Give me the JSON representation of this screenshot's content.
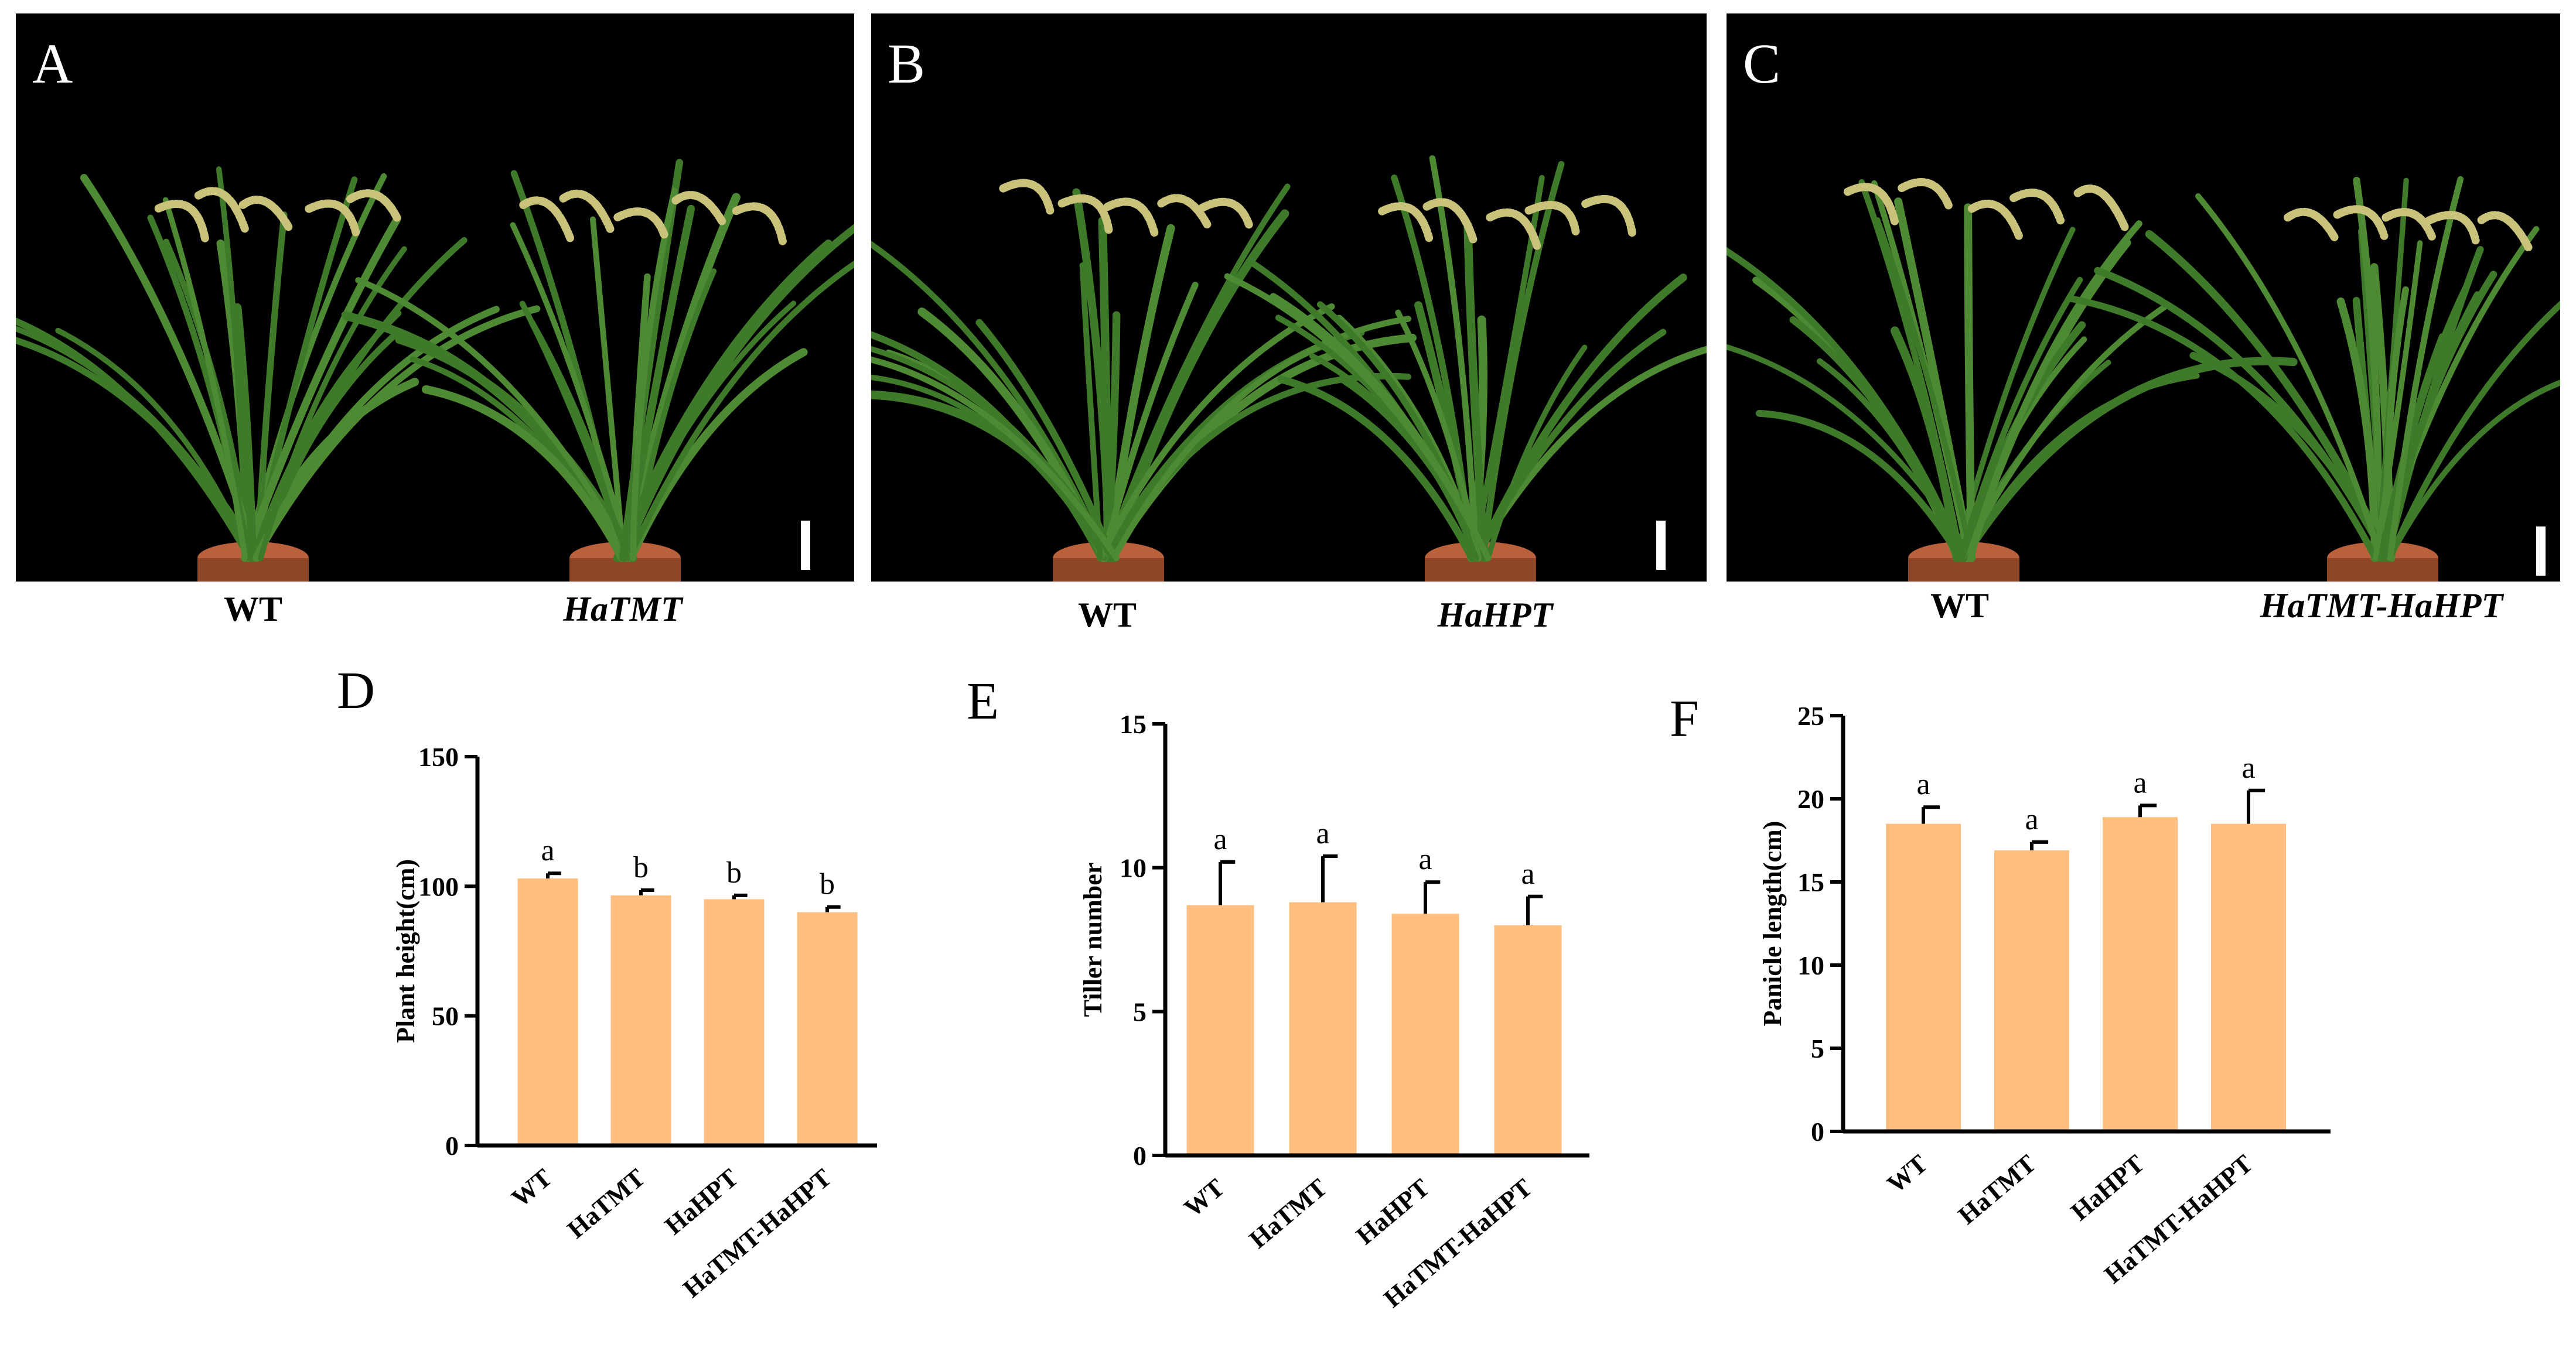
{
  "colors": {
    "bar": "#FFBF80",
    "panel_bg": "#000000",
    "leaf": "#3F7A2A",
    "panicle": "#C9C27A",
    "pot": "#B8613A"
  },
  "photo_panels": [
    {
      "letter": "A",
      "labels": [
        {
          "text": "WT",
          "italic": false
        },
        {
          "text": "HaTMT",
          "italic": true
        }
      ]
    },
    {
      "letter": "B",
      "labels": [
        {
          "text": "WT",
          "italic": false
        },
        {
          "text": "HaHPT",
          "italic": true
        }
      ]
    },
    {
      "letter": "C",
      "labels": [
        {
          "text": "WT",
          "italic": false
        },
        {
          "text": "HaTMT-HaHPT",
          "italic": true
        }
      ]
    }
  ],
  "chart_data": [
    {
      "panel": "D",
      "type": "bar",
      "categories": [
        "WT",
        "HaTMT",
        "HaHPT",
        "HaTMT-HaHPT"
      ],
      "values": [
        103,
        96.5,
        95,
        90
      ],
      "errors": [
        2,
        2,
        1.5,
        2
      ],
      "significance": [
        "a",
        "b",
        "b",
        "b"
      ],
      "ylabel": "Plant height(cm)",
      "xlabel": "",
      "ylim": [
        0,
        150
      ],
      "yticks": [
        0,
        50,
        100,
        150
      ]
    },
    {
      "panel": "E",
      "type": "bar",
      "categories": [
        "WT",
        "HaTMT",
        "HaHPT",
        "HaTMT-HaHPT"
      ],
      "values": [
        8.7,
        8.8,
        8.4,
        8.0
      ],
      "errors": [
        1.5,
        1.6,
        1.1,
        1.0
      ],
      "significance": [
        "a",
        "a",
        "a",
        "a"
      ],
      "ylabel": "Tiller number",
      "xlabel": "",
      "ylim": [
        0,
        15
      ],
      "yticks": [
        0,
        5,
        10,
        15
      ]
    },
    {
      "panel": "F",
      "type": "bar",
      "categories": [
        "WT",
        "HaTMT",
        "HaHPT",
        "HaTMT-HaHPT"
      ],
      "values": [
        18.5,
        16.9,
        18.9,
        18.5
      ],
      "errors": [
        1.0,
        0.5,
        0.7,
        2.0
      ],
      "significance": [
        "a",
        "a",
        "a",
        "a"
      ],
      "ylabel": "Panicle length(cm)",
      "xlabel": "",
      "ylim": [
        0,
        25
      ],
      "yticks": [
        0,
        5,
        10,
        15,
        20,
        25
      ]
    }
  ]
}
